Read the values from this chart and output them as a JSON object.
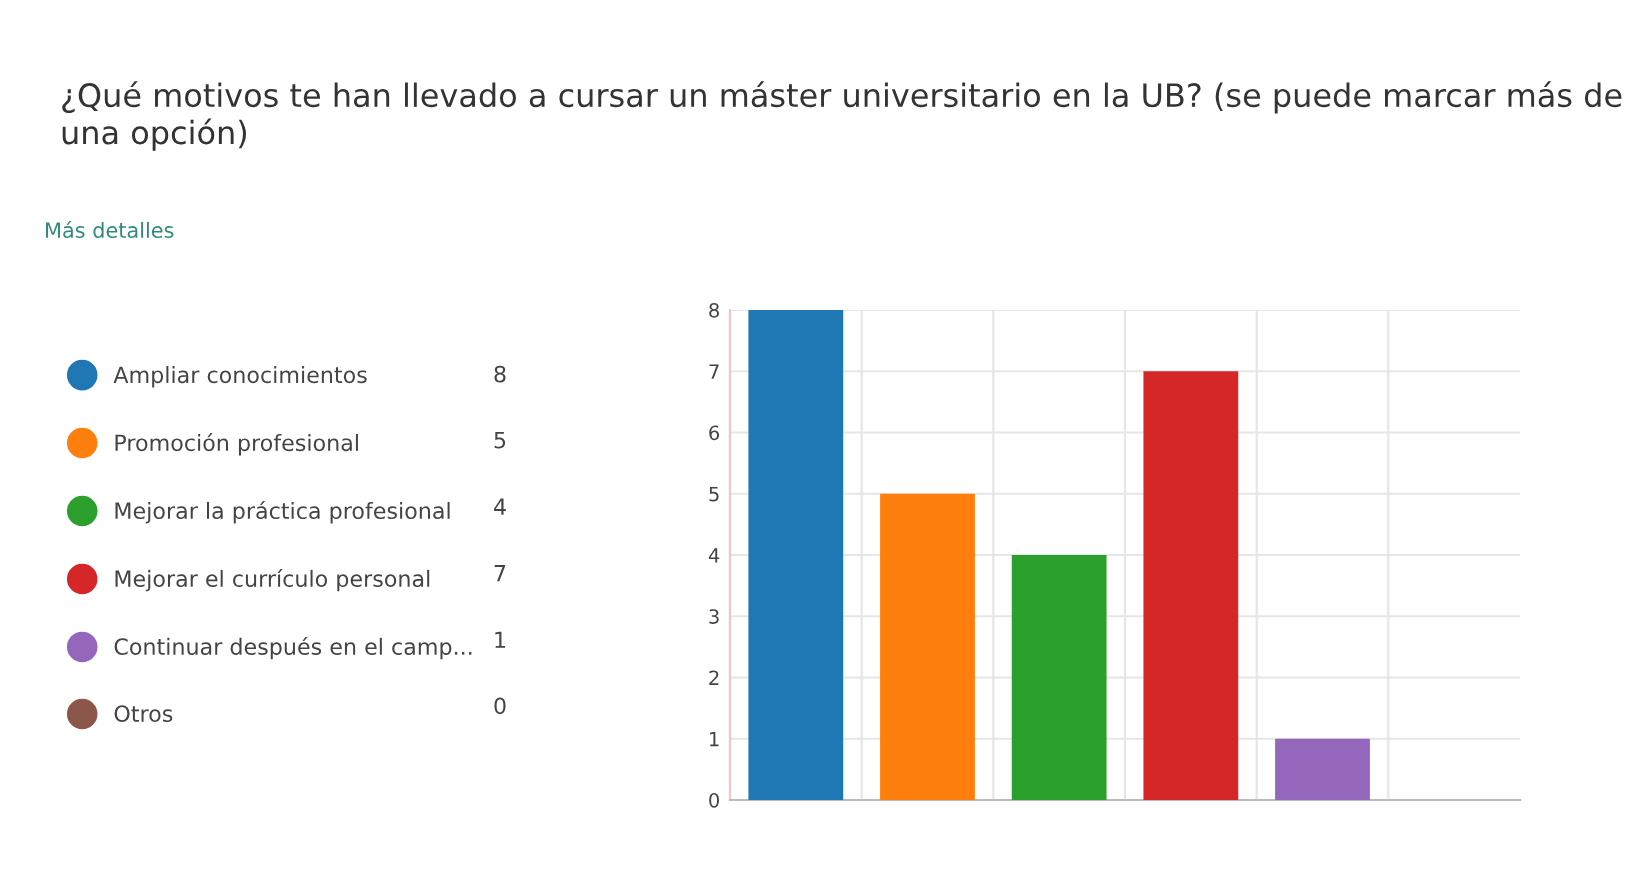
{
  "chart_data": {
    "type": "bar",
    "title": "¿Qué motivos te han llevado a cursar un máster universitario en la UB? (se puede marcar más de una opción)",
    "annotations": [
      "Más detalles",
      "8",
      "5",
      "4",
      "7",
      "1",
      "0"
    ],
    "categories": [
      null,
      null,
      null,
      null,
      null,
      null
    ],
    "series": [
      {
        "name": "Ampliar conocimientos",
        "color": "#1f77b4",
        "values": [
          8,
          null,
          null,
          null,
          null,
          null
        ]
      },
      {
        "name": "Promoción profesional",
        "color": "#ff7f0e",
        "values": [
          null,
          5,
          null,
          null,
          null,
          null
        ]
      },
      {
        "name": "Mejorar la práctica profesional",
        "color": "#2ca02c",
        "values": [
          null,
          null,
          4,
          null,
          null,
          null
        ]
      },
      {
        "name": "Mejorar el currículo personal",
        "color": "#d62728",
        "values": [
          null,
          null,
          null,
          7,
          null,
          null
        ]
      },
      {
        "name": "Continuar después en el camp...",
        "color": "#9467bd",
        "values": [
          null,
          null,
          null,
          null,
          1,
          null
        ]
      },
      {
        "name": "Otros",
        "color": "#8c564b",
        "values": [
          null,
          null,
          null,
          null,
          null,
          0
        ]
      }
    ],
    "ylim": [
      0,
      8
    ],
    "yticks": [
      0,
      1,
      2,
      3,
      4,
      5,
      6,
      7,
      8
    ],
    "grid": true,
    "legend": "left",
    "tick_labels": "y"
  }
}
